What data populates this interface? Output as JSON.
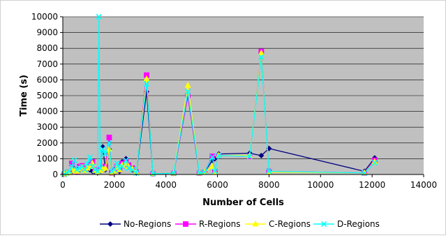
{
  "chart_data": {
    "type": "line",
    "title": "",
    "xlabel": "Number of Cells",
    "ylabel": "Time (s)",
    "xlim": [
      0,
      14000
    ],
    "ylim": [
      0,
      10000
    ],
    "x_ticks": [
      0,
      2000,
      4000,
      6000,
      8000,
      10000,
      12000,
      14000
    ],
    "y_ticks": [
      0,
      1000,
      2000,
      3000,
      4000,
      5000,
      6000,
      7000,
      8000,
      9000,
      10000
    ],
    "grid": "horizontal",
    "plot_background": "#c0c0c0",
    "legend_position": "bottom",
    "series": [
      {
        "name": "No-Regions",
        "color": "#000080",
        "marker": "diamond",
        "points": [
          [
            50,
            30
          ],
          [
            150,
            80
          ],
          [
            250,
            120
          ],
          [
            350,
            200
          ],
          [
            450,
            350
          ],
          [
            550,
            150
          ],
          [
            650,
            300
          ],
          [
            750,
            400
          ],
          [
            850,
            250
          ],
          [
            950,
            500
          ],
          [
            1050,
            300
          ],
          [
            1150,
            200
          ],
          [
            1250,
            150
          ],
          [
            1350,
            100
          ],
          [
            1450,
            200
          ],
          [
            1550,
            1750
          ],
          [
            1650,
            300
          ],
          [
            1800,
            1600
          ],
          [
            1900,
            100
          ],
          [
            2000,
            300
          ],
          [
            2100,
            400
          ],
          [
            2200,
            200
          ],
          [
            2300,
            800
          ],
          [
            2450,
            1000
          ],
          [
            2550,
            500
          ],
          [
            2700,
            300
          ],
          [
            2850,
            100
          ],
          [
            3250,
            5250
          ],
          [
            3500,
            50
          ],
          [
            4300,
            80
          ],
          [
            4850,
            5000
          ],
          [
            5300,
            100
          ],
          [
            5500,
            150
          ],
          [
            5800,
            900
          ],
          [
            5900,
            1000
          ],
          [
            6050,
            1300
          ],
          [
            7250,
            1350
          ],
          [
            7700,
            1200
          ],
          [
            8000,
            1650
          ],
          [
            11700,
            200
          ],
          [
            12100,
            1050
          ]
        ]
      },
      {
        "name": "R-Regions",
        "color": "#ff00ff",
        "marker": "square",
        "points": [
          [
            50,
            30
          ],
          [
            150,
            100
          ],
          [
            250,
            150
          ],
          [
            350,
            700
          ],
          [
            450,
            300
          ],
          [
            550,
            200
          ],
          [
            650,
            500
          ],
          [
            750,
            550
          ],
          [
            850,
            300
          ],
          [
            950,
            450
          ],
          [
            1050,
            600
          ],
          [
            1150,
            800
          ],
          [
            1250,
            300
          ],
          [
            1350,
            200
          ],
          [
            1450,
            300
          ],
          [
            1550,
            400
          ],
          [
            1650,
            500
          ],
          [
            1800,
            2350
          ],
          [
            1900,
            100
          ],
          [
            2000,
            200
          ],
          [
            2100,
            500
          ],
          [
            2200,
            300
          ],
          [
            2300,
            700
          ],
          [
            2450,
            800
          ],
          [
            2550,
            600
          ],
          [
            2700,
            400
          ],
          [
            2850,
            150
          ],
          [
            3250,
            6300
          ],
          [
            3500,
            60
          ],
          [
            4300,
            80
          ],
          [
            4850,
            5000
          ],
          [
            5300,
            100
          ],
          [
            5500,
            150
          ],
          [
            5800,
            1150
          ],
          [
            5900,
            200
          ],
          [
            6050,
            1200
          ],
          [
            7250,
            1150
          ],
          [
            7700,
            7800
          ],
          [
            8000,
            200
          ],
          [
            11700,
            100
          ],
          [
            12100,
            900
          ]
        ]
      },
      {
        "name": "C-Regions",
        "color": "#ffff00",
        "marker": "triangle",
        "points": [
          [
            50,
            30
          ],
          [
            150,
            80
          ],
          [
            250,
            120
          ],
          [
            350,
            400
          ],
          [
            450,
            250
          ],
          [
            550,
            200
          ],
          [
            650,
            350
          ],
          [
            750,
            450
          ],
          [
            850,
            250
          ],
          [
            950,
            400
          ],
          [
            1050,
            500
          ],
          [
            1150,
            700
          ],
          [
            1250,
            250
          ],
          [
            1350,
            150
          ],
          [
            1450,
            250
          ],
          [
            1550,
            350
          ],
          [
            1650,
            400
          ],
          [
            1800,
            1600
          ],
          [
            1900,
            100
          ],
          [
            2000,
            200
          ],
          [
            2100,
            450
          ],
          [
            2200,
            300
          ],
          [
            2300,
            600
          ],
          [
            2450,
            700
          ],
          [
            2550,
            500
          ],
          [
            2700,
            350
          ],
          [
            2850,
            150
          ],
          [
            3250,
            6050
          ],
          [
            3500,
            60
          ],
          [
            4300,
            80
          ],
          [
            4850,
            5650
          ],
          [
            5300,
            100
          ],
          [
            5500,
            150
          ],
          [
            5800,
            500
          ],
          [
            5900,
            150
          ],
          [
            6050,
            1200
          ],
          [
            7250,
            1200
          ],
          [
            7700,
            7700
          ],
          [
            8000,
            150
          ],
          [
            11700,
            100
          ],
          [
            12100,
            800
          ]
        ]
      },
      {
        "name": "D-Regions",
        "color": "#00ffff",
        "marker": "x",
        "points": [
          [
            50,
            30
          ],
          [
            150,
            120
          ],
          [
            250,
            200
          ],
          [
            350,
            500
          ],
          [
            450,
            900
          ],
          [
            550,
            300
          ],
          [
            650,
            400
          ],
          [
            750,
            500
          ],
          [
            850,
            300
          ],
          [
            950,
            700
          ],
          [
            1050,
            1100
          ],
          [
            1150,
            500
          ],
          [
            1250,
            300
          ],
          [
            1350,
            200
          ],
          [
            1400,
            10000
          ],
          [
            1450,
            400
          ],
          [
            1550,
            1600
          ],
          [
            1650,
            1300
          ],
          [
            1800,
            2000
          ],
          [
            1900,
            200
          ],
          [
            2000,
            300
          ],
          [
            2100,
            700
          ],
          [
            2200,
            400
          ],
          [
            2300,
            500
          ],
          [
            2450,
            900
          ],
          [
            2550,
            400
          ],
          [
            2700,
            300
          ],
          [
            2850,
            100
          ],
          [
            3250,
            5750
          ],
          [
            3500,
            50
          ],
          [
            4300,
            80
          ],
          [
            4850,
            5250
          ],
          [
            5300,
            100
          ],
          [
            5500,
            150
          ],
          [
            5800,
            1100
          ],
          [
            5900,
            200
          ],
          [
            6050,
            1200
          ],
          [
            7250,
            1150
          ],
          [
            7700,
            7450
          ],
          [
            8000,
            200
          ],
          [
            11700,
            100
          ],
          [
            12100,
            750
          ]
        ]
      }
    ]
  }
}
